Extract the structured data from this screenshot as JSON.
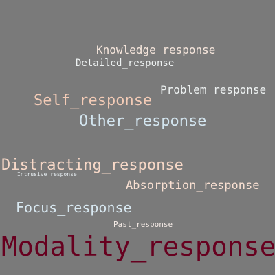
{
  "words": [
    {
      "key": "knowledge",
      "text": "Knowledge_response",
      "color": "#f6e6dc"
    },
    {
      "key": "detailed",
      "text": "Detailed_response",
      "color": "#eef2f2"
    },
    {
      "key": "problem",
      "text": "Problem_response",
      "color": "#eef2f2"
    },
    {
      "key": "self",
      "text": "Self_response",
      "color": "#f3cbb6"
    },
    {
      "key": "other",
      "text": "Other_response",
      "color": "#d3e5ef"
    },
    {
      "key": "distracting",
      "text": "Distracting_response",
      "color": "#f7d8c7"
    },
    {
      "key": "intrusive",
      "text": "Intrusive_response",
      "color": "#e7eef2"
    },
    {
      "key": "absorption",
      "text": "Absorption_response",
      "color": "#f9e0d2"
    },
    {
      "key": "focus",
      "text": "Focus_response",
      "color": "#d8e8f1"
    },
    {
      "key": "past",
      "text": "Past_response",
      "color": "#f7ede8"
    },
    {
      "key": "modality",
      "text": "Modality_response",
      "color": "#67001f"
    }
  ],
  "background": "#7a7a7a"
}
